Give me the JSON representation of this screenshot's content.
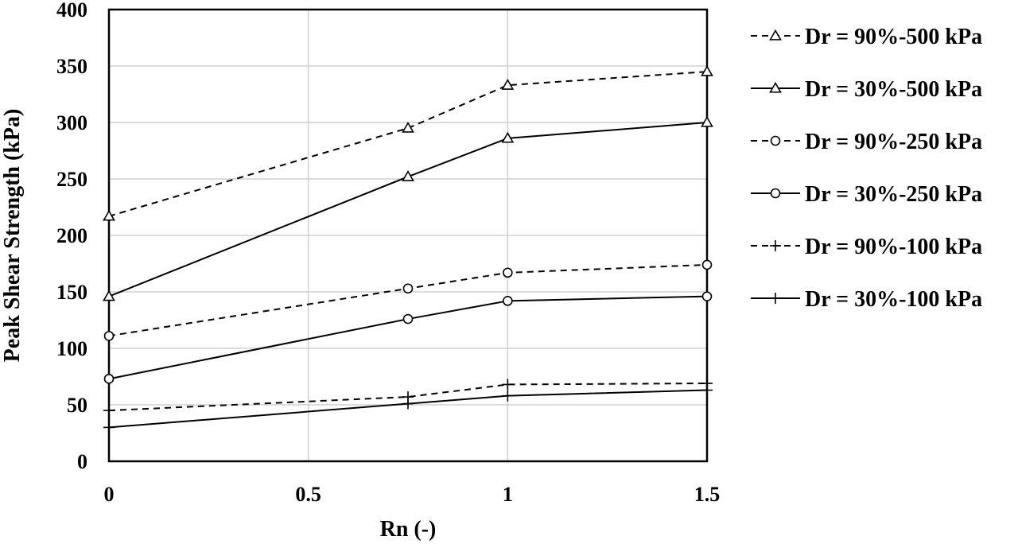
{
  "chart_data": {
    "type": "line",
    "title": "",
    "xlabel": "Rn (-)",
    "ylabel": "Peak Shear Strength (kPa)",
    "xlim": [
      0,
      1.5
    ],
    "ylim": [
      0,
      400
    ],
    "x_ticks": [
      "0",
      "0.5",
      "1",
      "1.5"
    ],
    "y_ticks": [
      "0",
      "50",
      "100",
      "150",
      "200",
      "250",
      "300",
      "350",
      "400"
    ],
    "grid": true,
    "legend_position": "right",
    "series": [
      {
        "name": "Dr = 90%-500 kPa",
        "line": "dashed",
        "marker": "triangle",
        "x": [
          0,
          0.75,
          1,
          1.5
        ],
        "y": [
          217,
          295,
          333,
          345
        ]
      },
      {
        "name": "Dr = 30%-500 kPa",
        "line": "solid",
        "marker": "triangle",
        "x": [
          0,
          0.75,
          1,
          1.5
        ],
        "y": [
          146,
          252,
          286,
          300
        ]
      },
      {
        "name": "Dr = 90%-250 kPa",
        "line": "dashed",
        "marker": "circle",
        "x": [
          0,
          0.75,
          1,
          1.5
        ],
        "y": [
          111,
          153,
          167,
          174
        ]
      },
      {
        "name": "Dr = 30%-250 kPa",
        "line": "solid",
        "marker": "circle",
        "x": [
          0,
          0.75,
          1,
          1.5
        ],
        "y": [
          73,
          126,
          142,
          146
        ]
      },
      {
        "name": "Dr = 90%-100 kPa",
        "line": "dashed",
        "marker": "plus",
        "x": [
          0,
          0.75,
          1,
          1.5
        ],
        "y": [
          45,
          57,
          68,
          69
        ]
      },
      {
        "name": "Dr = 30%-100 kPa",
        "line": "solid",
        "marker": "plus",
        "x": [
          0,
          0.75,
          1,
          1.5
        ],
        "y": [
          30,
          51,
          58,
          63
        ]
      }
    ]
  }
}
